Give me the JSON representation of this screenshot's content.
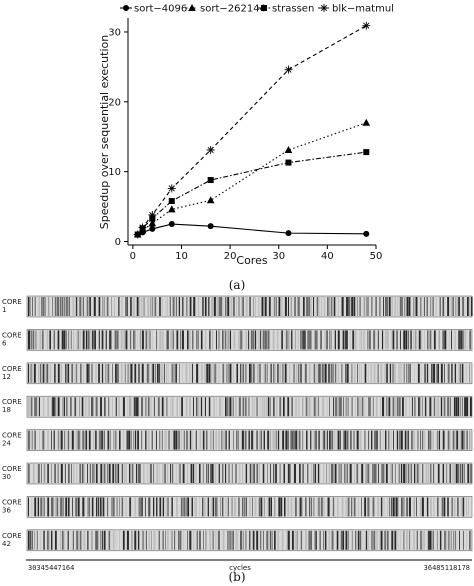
{
  "chart_data": [
    {
      "type": "line",
      "xlabel": "Cores",
      "ylabel": "Speedup over sequential execution",
      "xlim": [
        -1,
        50
      ],
      "ylim": [
        -0.5,
        32
      ],
      "xticks": [
        "0",
        "10",
        "20",
        "30",
        "40",
        "50"
      ],
      "yticks": [
        "0",
        "10",
        "20",
        "30"
      ],
      "legend_position": "top",
      "grid": false,
      "series": [
        {
          "name": "sort−4096",
          "marker": "circle",
          "dash": "solid",
          "x": [
            1,
            2,
            4,
            8,
            16,
            32,
            48
          ],
          "y": [
            1.0,
            1.3,
            1.8,
            2.5,
            2.2,
            1.2,
            1.1
          ]
        },
        {
          "name": "sort−262144",
          "marker": "triangle",
          "dash": "dotted",
          "x": [
            1,
            2,
            4,
            8,
            16,
            32,
            48
          ],
          "y": [
            1.0,
            1.6,
            2.6,
            4.6,
            5.9,
            13.1,
            17.0
          ]
        },
        {
          "name": "strassen",
          "marker": "square",
          "dash": "dashdot",
          "x": [
            1,
            2,
            4,
            8,
            16,
            32,
            48
          ],
          "y": [
            1.0,
            1.9,
            3.3,
            5.8,
            8.8,
            11.3,
            12.8
          ]
        },
        {
          "name": "blk−matmul",
          "marker": "plus",
          "dash": "dashed",
          "x": [
            1,
            2,
            4,
            8,
            16,
            32,
            48
          ],
          "y": [
            1.0,
            2.0,
            3.8,
            7.6,
            13.1,
            24.6,
            30.9
          ]
        }
      ],
      "caption": "(a)"
    },
    {
      "type": "heatmap",
      "xlabel": "cycles",
      "x_start": "30345447164",
      "x_end": "36485118178",
      "rows": [
        "CORE 1",
        "CORE 6",
        "CORE 12",
        "CORE 18",
        "CORE 24",
        "CORE 30",
        "CORE 36",
        "CORE 42"
      ],
      "row_label_lines": [
        [
          "CORE",
          "1"
        ],
        [
          "CORE",
          "6"
        ],
        [
          "CORE",
          "12"
        ],
        [
          "CORE",
          "18"
        ],
        [
          "CORE",
          "24"
        ],
        [
          "CORE",
          "30"
        ],
        [
          "CORE",
          "36"
        ],
        [
          "CORE",
          "42"
        ]
      ],
      "colors": {
        "dense": "#2a2a2a",
        "light": "#bdbdbd",
        "background": "#d9d9d9"
      },
      "caption": "(b)"
    }
  ]
}
